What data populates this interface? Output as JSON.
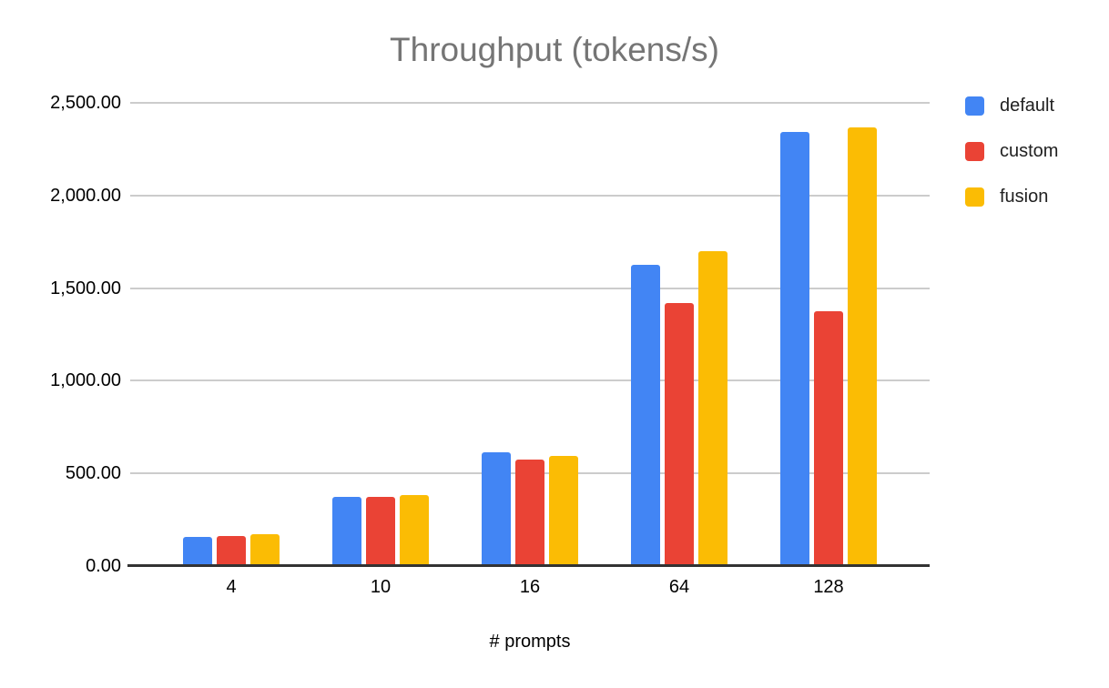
{
  "chart_data": {
    "type": "bar",
    "title": "Throughput (tokens/s)",
    "xlabel": "# prompts",
    "ylabel": "",
    "categories": [
      "4",
      "10",
      "16",
      "64",
      "128"
    ],
    "series": [
      {
        "name": "default",
        "color": "#4285F4",
        "values": [
          158,
          375,
          612,
          1628,
          2345
        ]
      },
      {
        "name": "custom",
        "color": "#EA4335",
        "values": [
          163,
          373,
          575,
          1421,
          1376
        ]
      },
      {
        "name": "fusion",
        "color": "#FBBC04",
        "values": [
          170,
          383,
          596,
          1700,
          2368
        ]
      }
    ],
    "ylim": [
      0,
      2500
    ],
    "yticks": [
      {
        "value": 0,
        "label": "0.00"
      },
      {
        "value": 500,
        "label": "500.00"
      },
      {
        "value": 1000,
        "label": "1,000.00"
      },
      {
        "value": 1500,
        "label": "1,500.00"
      },
      {
        "value": 2000,
        "label": "2,000.00"
      },
      {
        "value": 2500,
        "label": "2,500.00"
      }
    ],
    "grid": true,
    "legend_position": "right-top",
    "background_color": "#FFFFFF",
    "gridline_color": "#CCCCCC",
    "axis_line_color": "#333333",
    "title_color": "#757575"
  }
}
